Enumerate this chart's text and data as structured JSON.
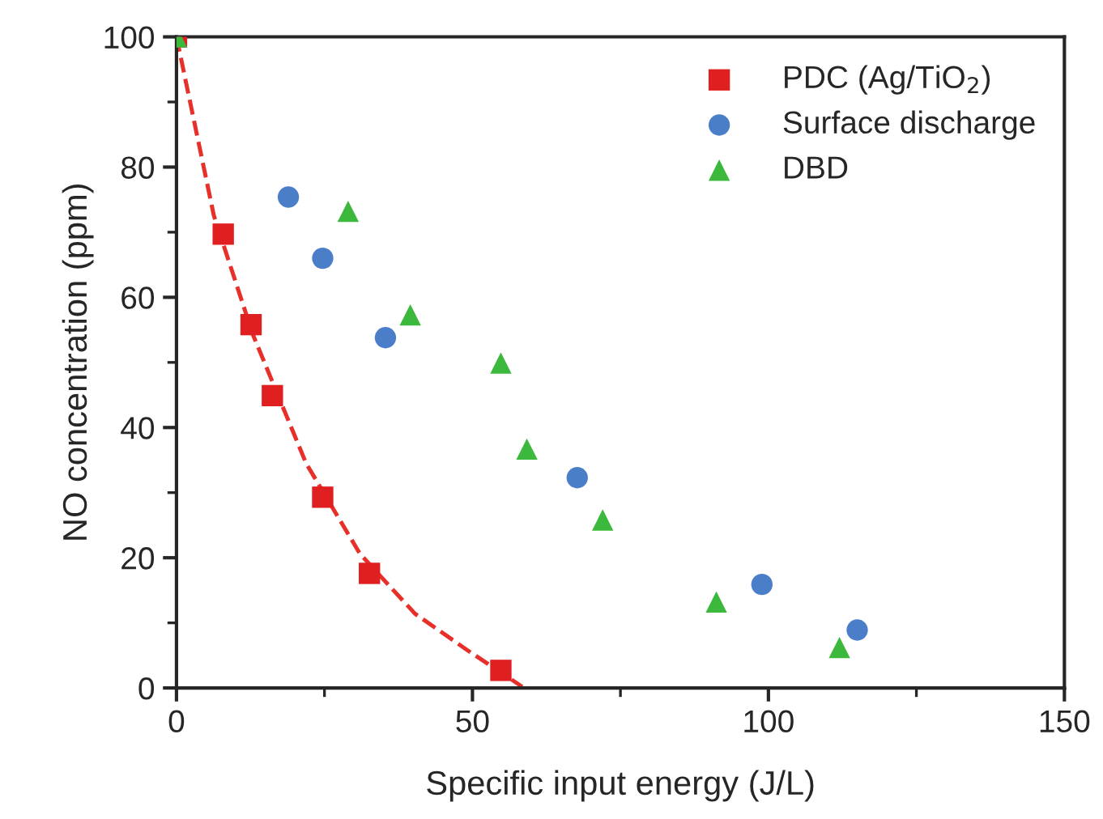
{
  "chart_data": {
    "type": "scatter",
    "xlabel": "Specific input energy (J/L)",
    "ylabel": "NO concentration (ppm)",
    "xlim": [
      0,
      150
    ],
    "ylim": [
      0,
      100
    ],
    "xticks": [
      0,
      50,
      100,
      150
    ],
    "yticks": [
      0,
      20,
      40,
      60,
      80,
      100
    ],
    "grid": false,
    "legend": "top right",
    "series": [
      {
        "type": "line",
        "color": "#e8302a",
        "line_style": "dashed",
        "marker": "none",
        "x": [
          0,
          6.3,
          12.9,
          21.9,
          31,
          40.3,
          49.3,
          58.4
        ],
        "values": [
          100,
          72.6,
          54.3,
          34.5,
          20.6,
          11.4,
          5.7,
          0.2
        ]
      },
      {
        "name": "PDC (Ag/TiO$_{2}$)",
        "color": "#e02020",
        "marker": "square",
        "x": [
          0,
          7.9,
          12.6,
          16.2,
          24.7,
          32.6,
          54.8
        ],
        "values": [
          100,
          69.7,
          55.8,
          44.9,
          29.3,
          17.6,
          2.7
        ]
      },
      {
        "name": "Surface discharge",
        "color": "#4a7ec8",
        "marker": "circle",
        "x": [
          18.9,
          24.7,
          35.3,
          67.7,
          98.9,
          115
        ],
        "values": [
          75.4,
          66,
          53.8,
          32.3,
          15.9,
          8.9
        ]
      },
      {
        "name": "DBD",
        "color": "#3cb83c",
        "marker": "triangle",
        "x": [
          0,
          29,
          39.5,
          54.8,
          59.2,
          72,
          91.2,
          112
        ],
        "values": [
          100,
          73.2,
          57.3,
          49.9,
          36.7,
          25.8,
          13.2,
          6.2
        ]
      }
    ]
  }
}
